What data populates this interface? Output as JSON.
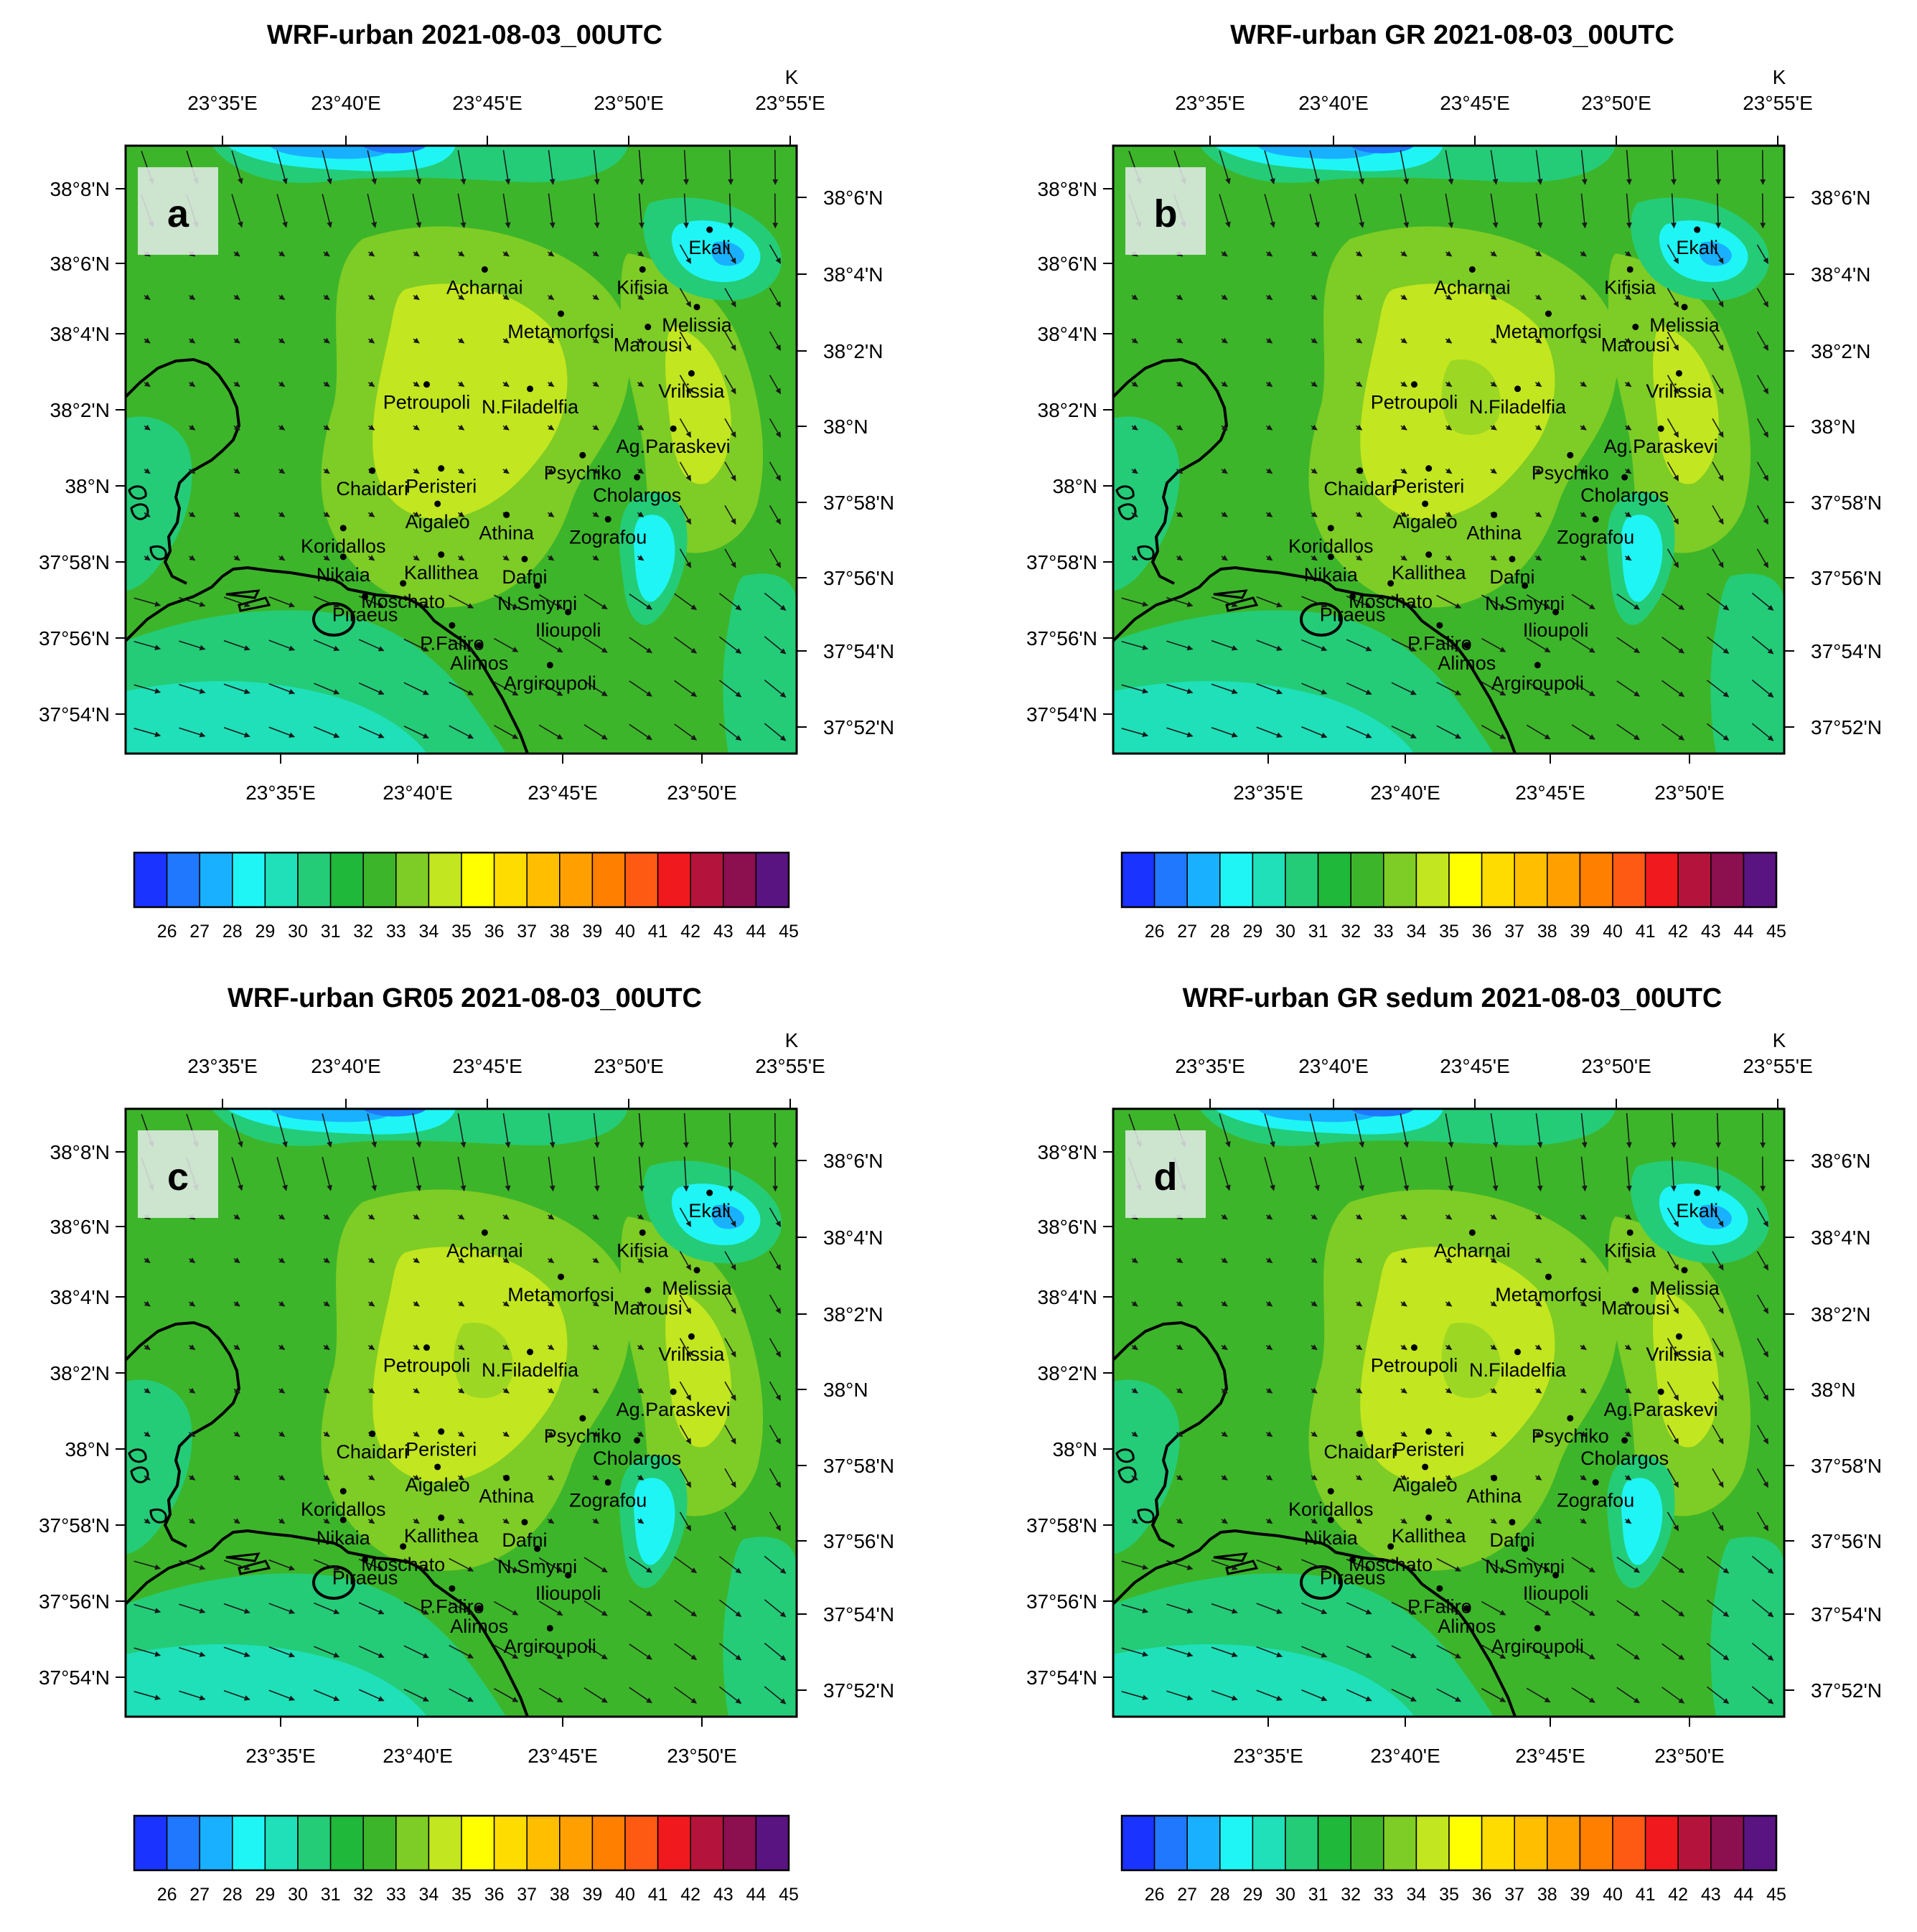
{
  "figure": {
    "unit_label": "K",
    "x_top_ticks": [
      "23°35'E",
      "23°40'E",
      "23°45'E",
      "23°50'E",
      "23°55'E"
    ],
    "x_bottom_ticks": [
      "23°35'E",
      "23°40'E",
      "23°45'E",
      "23°50'E"
    ],
    "y_left_ticks": [
      "38°8'N",
      "38°6'N",
      "38°4'N",
      "38°2'N",
      "38°N",
      "37°58'N",
      "37°56'N",
      "37°54'N"
    ],
    "y_right_ticks": [
      "38°6'N",
      "38°4'N",
      "38°2'N",
      "38°N",
      "37°58'N",
      "37°56'N",
      "37°54'N",
      "37°52'N"
    ],
    "colorbar": {
      "labels": [
        "26",
        "27",
        "28",
        "29",
        "30",
        "31",
        "32",
        "33",
        "34",
        "35",
        "36",
        "37",
        "38",
        "39",
        "40",
        "41",
        "42",
        "43",
        "44",
        "45"
      ],
      "colors": [
        "#1a33ff",
        "#1f78ff",
        "#19b0ff",
        "#1ff5f5",
        "#1fe0b8",
        "#24cc78",
        "#1fb83a",
        "#3db52a",
        "#7ecc26",
        "#c2e61f",
        "#ffff00",
        "#ffdc00",
        "#ffbe00",
        "#ffa000",
        "#ff7f00",
        "#ff5a14",
        "#f0191e",
        "#b4143c",
        "#8c0f50",
        "#5a1482"
      ]
    },
    "panels": [
      {
        "id": "a",
        "title": "WRF-urban 2021-08-03_00UTC"
      },
      {
        "id": "b",
        "title": "WRF-urban GR 2021-08-03_00UTC"
      },
      {
        "id": "c",
        "title": "WRF-urban GR05 2021-08-03_00UTC"
      },
      {
        "id": "d",
        "title": "WRF-urban GR sedum 2021-08-03_00UTC"
      }
    ],
    "places": [
      {
        "name": "Ekali",
        "lon": 23.84,
        "lat": 38.112
      },
      {
        "name": "Acharnai",
        "lon": 23.716,
        "lat": 38.094
      },
      {
        "name": "Kifisia",
        "lon": 23.803,
        "lat": 38.094
      },
      {
        "name": "Melissia",
        "lon": 23.833,
        "lat": 38.077
      },
      {
        "name": "Metamorfosi",
        "lon": 23.758,
        "lat": 38.074
      },
      {
        "name": "Marousi",
        "lon": 23.806,
        "lat": 38.068
      },
      {
        "name": "Vrilissia",
        "lon": 23.83,
        "lat": 38.047
      },
      {
        "name": "Petroupoli",
        "lon": 23.684,
        "lat": 38.042
      },
      {
        "name": "N.Filadelfia",
        "lon": 23.741,
        "lat": 38.04
      },
      {
        "name": "Ag.Paraskevi",
        "lon": 23.82,
        "lat": 38.022
      },
      {
        "name": "Psychiko",
        "lon": 23.77,
        "lat": 38.01
      },
      {
        "name": "Chaidari",
        "lon": 23.654,
        "lat": 38.003
      },
      {
        "name": "Peristeri",
        "lon": 23.692,
        "lat": 38.004
      },
      {
        "name": "Cholargos",
        "lon": 23.8,
        "lat": 38.0
      },
      {
        "name": "Aigaleo",
        "lon": 23.69,
        "lat": 37.988
      },
      {
        "name": "Athina",
        "lon": 23.728,
        "lat": 37.983
      },
      {
        "name": "Zografou",
        "lon": 23.784,
        "lat": 37.981
      },
      {
        "name": "Koridallos",
        "lon": 23.638,
        "lat": 37.977
      },
      {
        "name": "Nikaia",
        "lon": 23.638,
        "lat": 37.964
      },
      {
        "name": "Kallithea",
        "lon": 23.692,
        "lat": 37.965
      },
      {
        "name": "Dafni",
        "lon": 23.738,
        "lat": 37.963
      },
      {
        "name": "Moschato",
        "lon": 23.671,
        "lat": 37.952
      },
      {
        "name": "N.Smyrni",
        "lon": 23.745,
        "lat": 37.951
      },
      {
        "name": "Piraeus",
        "lon": 23.65,
        "lat": 37.946
      },
      {
        "name": "Ilioupoli",
        "lon": 23.762,
        "lat": 37.939
      },
      {
        "name": "P.Faliro",
        "lon": 23.698,
        "lat": 37.933
      },
      {
        "name": "Alimos",
        "lon": 23.713,
        "lat": 37.924
      },
      {
        "name": "Argiroupoli",
        "lon": 23.752,
        "lat": 37.915
      }
    ]
  }
}
